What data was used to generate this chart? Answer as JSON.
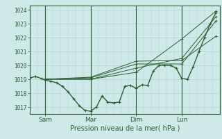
{
  "title": "Pression niveau de la mer( hPa )",
  "ylabel_values": [
    1017,
    1018,
    1019,
    1020,
    1021,
    1022,
    1023,
    1024
  ],
  "ylim": [
    1016.5,
    1024.3
  ],
  "xlim": [
    0,
    100
  ],
  "xtick_positions": [
    8,
    32,
    56,
    80
  ],
  "xtick_labels": [
    "Sam",
    "Mar",
    "Dim",
    "Lun"
  ],
  "vline_positions": [
    8,
    32,
    56,
    80
  ],
  "bg_color": "#cfe8e8",
  "line_color": "#2a6030",
  "grid_color": "#b0d4d4",
  "main_series": {
    "x": [
      0,
      3,
      6,
      8,
      11,
      14,
      17,
      20,
      23,
      26,
      29,
      32,
      35,
      38,
      41,
      44,
      47,
      50,
      53,
      56,
      59,
      62,
      65,
      68,
      71,
      74,
      77,
      80,
      83,
      86,
      89,
      92,
      95,
      98
    ],
    "y": [
      1019.1,
      1019.2,
      1019.05,
      1018.95,
      1018.85,
      1018.75,
      1018.5,
      1018.1,
      1017.6,
      1017.1,
      1016.75,
      1016.7,
      1017.0,
      1017.8,
      1017.35,
      1017.3,
      1017.35,
      1018.5,
      1018.55,
      1018.35,
      1018.6,
      1018.55,
      1019.6,
      1020.0,
      1020.0,
      1020.0,
      1019.8,
      1019.05,
      1019.0,
      1019.9,
      1021.0,
      1022.0,
      1023.0,
      1023.8
    ]
  },
  "forecast_series": [
    {
      "x": [
        8,
        32,
        56,
        80,
        98
      ],
      "y": [
        1019.0,
        1019.0,
        1019.5,
        1021.9,
        1023.9
      ]
    },
    {
      "x": [
        8,
        32,
        56,
        80,
        98
      ],
      "y": [
        1019.0,
        1019.0,
        1019.8,
        1020.5,
        1023.5
      ]
    },
    {
      "x": [
        8,
        32,
        56,
        80,
        98
      ],
      "y": [
        1019.0,
        1019.1,
        1020.1,
        1020.1,
        1023.2
      ]
    },
    {
      "x": [
        8,
        32,
        56,
        80,
        98
      ],
      "y": [
        1019.0,
        1019.15,
        1020.3,
        1020.35,
        1022.1
      ]
    }
  ]
}
